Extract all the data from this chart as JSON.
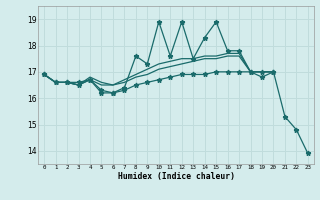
{
  "xlabel": "Humidex (Indice chaleur)",
  "bg_color": "#d4ecec",
  "line_color": "#1a6b6b",
  "grid_color": "#c0dcdc",
  "xlim": [
    -0.5,
    23.5
  ],
  "ylim": [
    13.5,
    19.5
  ],
  "yticks": [
    14,
    15,
    16,
    17,
    18,
    19
  ],
  "xticks": [
    0,
    1,
    2,
    3,
    4,
    5,
    6,
    7,
    8,
    9,
    10,
    11,
    12,
    13,
    14,
    15,
    16,
    17,
    18,
    19,
    20,
    21,
    22,
    23
  ],
  "series_jagged_x": [
    0,
    1,
    2,
    3,
    4,
    5,
    6,
    7,
    8,
    9,
    10,
    11,
    12,
    13,
    14,
    15,
    16,
    17,
    18,
    19,
    20
  ],
  "series_jagged_y": [
    16.9,
    16.6,
    16.6,
    16.6,
    16.7,
    16.3,
    16.2,
    16.4,
    17.6,
    17.3,
    18.9,
    17.6,
    18.9,
    17.5,
    18.3,
    18.9,
    17.8,
    17.8,
    17.0,
    16.8,
    17.0
  ],
  "series_upper_x": [
    0,
    1,
    2,
    3,
    4,
    5,
    6,
    7,
    8,
    9,
    10,
    11,
    12,
    13,
    14,
    15,
    16,
    17,
    18,
    19,
    20
  ],
  "series_upper_y": [
    16.9,
    16.6,
    16.6,
    16.5,
    16.8,
    16.6,
    16.5,
    16.7,
    16.9,
    17.1,
    17.3,
    17.4,
    17.5,
    17.5,
    17.6,
    17.6,
    17.7,
    17.7,
    17.0,
    17.0,
    17.0
  ],
  "series_middle_x": [
    0,
    1,
    2,
    3,
    4,
    5,
    6,
    7,
    8,
    9,
    10,
    11,
    12,
    13,
    14,
    15,
    16,
    17,
    18,
    19,
    20
  ],
  "series_middle_y": [
    16.9,
    16.6,
    16.6,
    16.5,
    16.7,
    16.5,
    16.5,
    16.6,
    16.8,
    16.9,
    17.1,
    17.2,
    17.3,
    17.4,
    17.5,
    17.5,
    17.6,
    17.6,
    17.0,
    17.0,
    17.0
  ],
  "series_down_x": [
    0,
    1,
    2,
    3,
    4,
    5,
    6,
    7,
    8,
    9,
    10,
    11,
    12,
    13,
    14,
    15,
    16,
    17,
    18,
    19,
    20,
    21,
    22,
    23
  ],
  "series_down_y": [
    16.9,
    16.6,
    16.6,
    16.5,
    16.7,
    16.2,
    16.2,
    16.3,
    16.5,
    16.6,
    16.7,
    16.8,
    16.9,
    16.9,
    16.9,
    17.0,
    17.0,
    17.0,
    17.0,
    17.0,
    17.0,
    15.3,
    14.8,
    13.9
  ]
}
